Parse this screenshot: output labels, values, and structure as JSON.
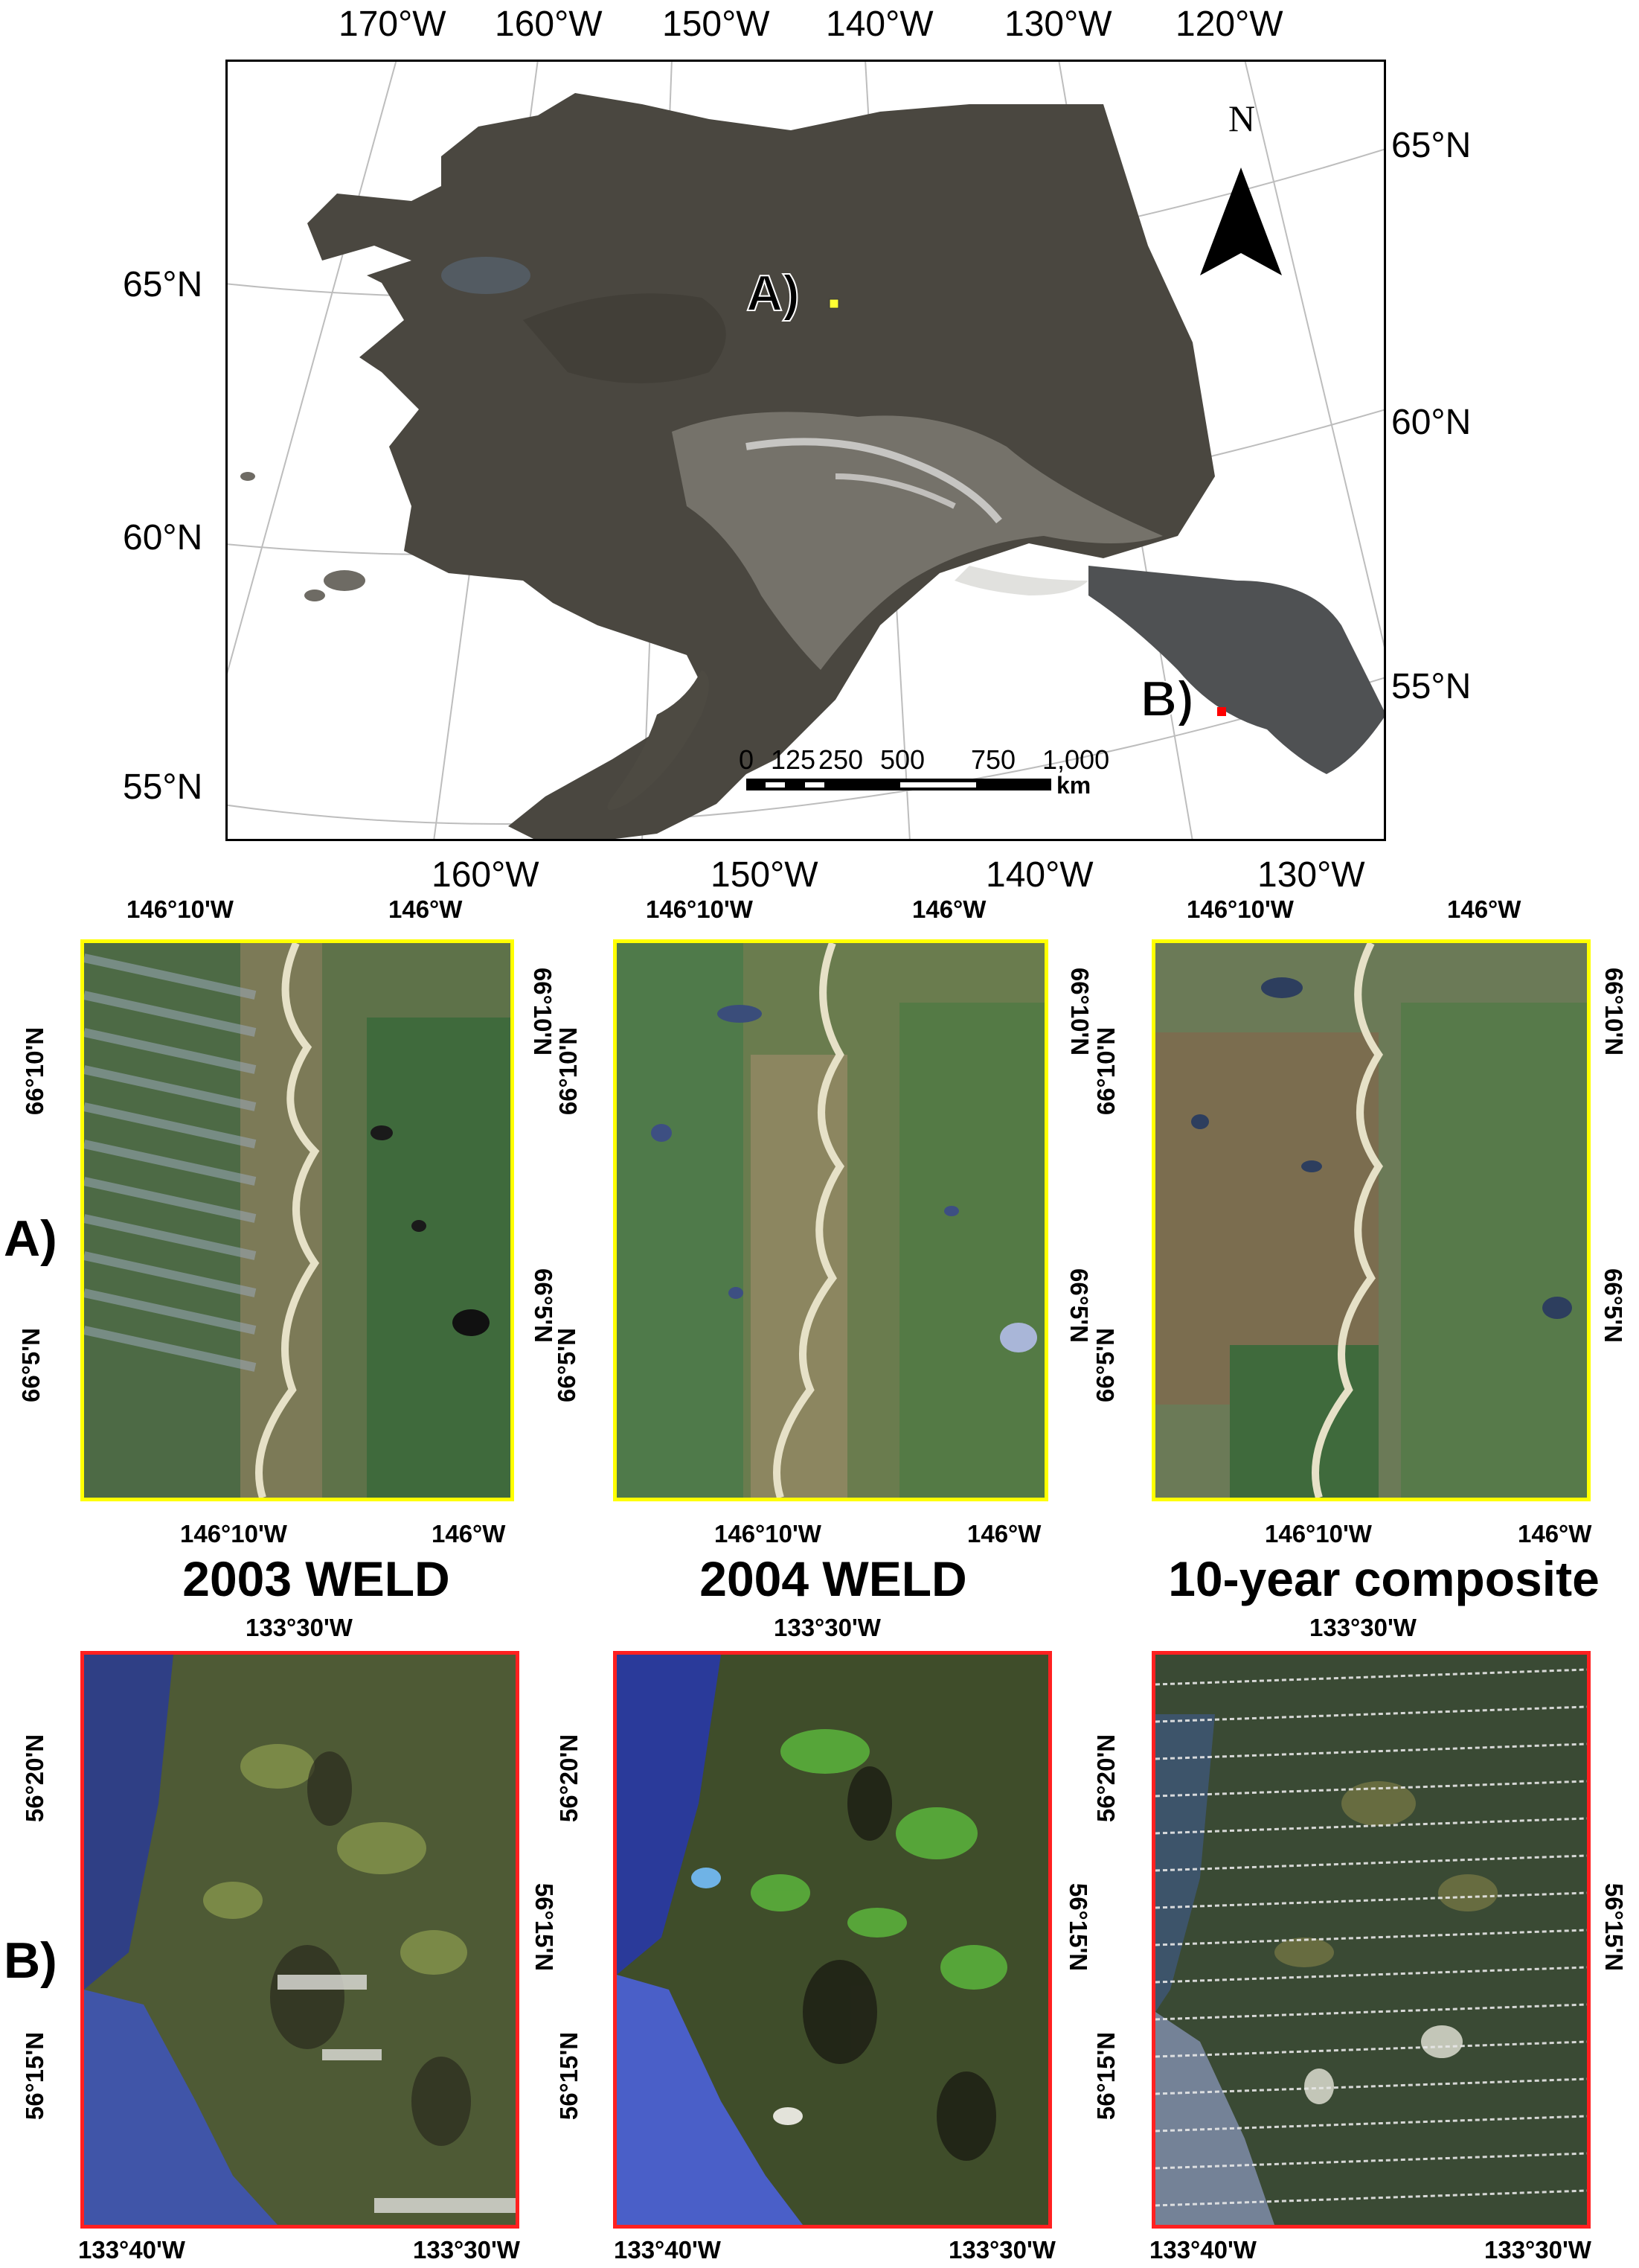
{
  "main_map": {
    "top_lon_labels": [
      "170°W",
      "160°W",
      "150°W",
      "140°W",
      "130°W",
      "120°W"
    ],
    "bottom_lon_labels": [
      "160°W",
      "150°W",
      "140°W",
      "130°W"
    ],
    "left_lat_labels": [
      "65°N",
      "60°N",
      "55°N"
    ],
    "right_lat_labels": [
      "65°N",
      "60°N",
      "55°N"
    ],
    "site_a_label": "A)",
    "site_b_label": "B)",
    "north_label": "N",
    "scale_ticks": [
      "0",
      "125",
      "250",
      "500",
      "750",
      "1,000"
    ],
    "scale_unit": "km",
    "colors": {
      "site_a_marker": "#ffff33",
      "site_b_marker": "#ff0000"
    }
  },
  "row_a": {
    "label": "A)",
    "frame_color": "#ffff00",
    "top_ticks": [
      "146°10'W",
      "146°W"
    ],
    "bottom_ticks": [
      "146°10'W",
      "146°W"
    ],
    "lat_ticks": [
      "66°10'N",
      "66°5'N"
    ],
    "panels": [
      {
        "title": "2003 WELD"
      },
      {
        "title": "2004 WELD"
      },
      {
        "title": "10-year composite"
      }
    ]
  },
  "row_b": {
    "label": "B)",
    "frame_color": "#ff2020",
    "top_ticks": [
      "133°30'W"
    ],
    "bottom_ticks": [
      "133°40'W",
      "133°30'W"
    ],
    "left_lat_ticks": [
      "56°20'N",
      "56°15'N"
    ],
    "right_lat_ticks": [
      "56°15'N"
    ]
  }
}
